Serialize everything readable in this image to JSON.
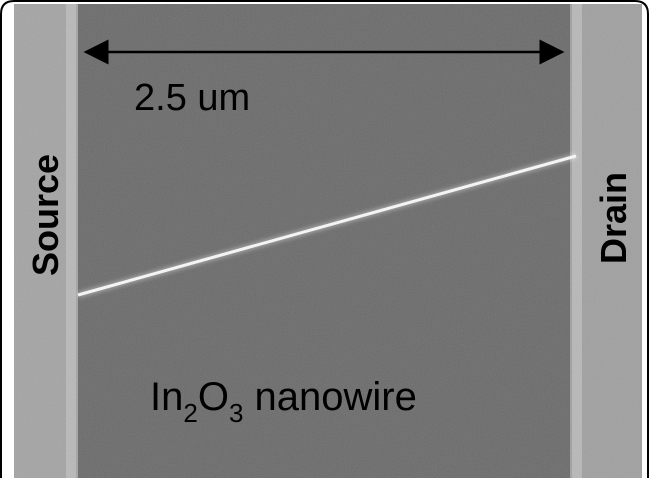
{
  "scale_bar": {
    "label": "2.5 um"
  },
  "electrodes": {
    "left": "Source",
    "right": "Drain"
  },
  "caption": {
    "parts": [
      "In",
      "2",
      "O",
      "3",
      " nanowire"
    ]
  }
}
